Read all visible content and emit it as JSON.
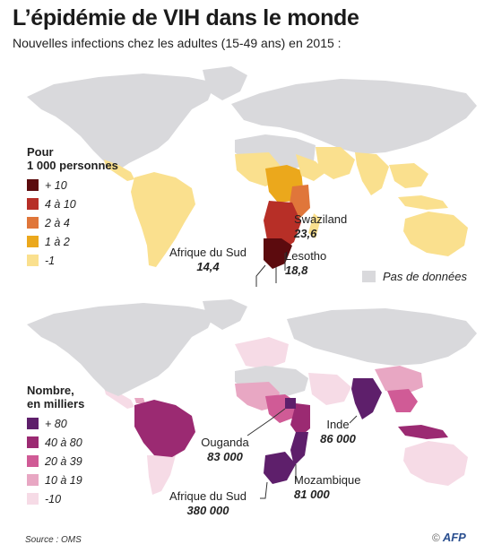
{
  "title": "L’épidémie de VIH dans le monde",
  "subtitle": "Nouvelles infections chez les adultes (15-49 ans) en 2015 :",
  "map1": {
    "legend_title_line1": "Pour",
    "legend_title_line2": "1 000 personnes",
    "legend": [
      {
        "label": "+ 10",
        "color": "#5c0b0e"
      },
      {
        "label": "4 à 10",
        "color": "#b72f27"
      },
      {
        "label": "2 à 4",
        "color": "#e0763a"
      },
      {
        "label": "1 à 2",
        "color": "#eba81c"
      },
      {
        "label": "-1",
        "color": "#fae08e"
      }
    ],
    "no_data_label": "Pas de données",
    "no_data_color": "#d9d9dc",
    "callouts": {
      "swaziland": {
        "name": "Swaziland",
        "value": "23,6"
      },
      "lesotho": {
        "name": "Lesotho",
        "value": "18,8"
      },
      "south_africa": {
        "name": "Afrique du Sud",
        "value": "14,4"
      }
    }
  },
  "map2": {
    "legend_title_line1": "Nombre,",
    "legend_title_line2": "en milliers",
    "legend": [
      {
        "label": "+ 80",
        "color": "#5e1f6b"
      },
      {
        "label": "40 à 80",
        "color": "#9b2a72"
      },
      {
        "label": "20 à 39",
        "color": "#d05b96"
      },
      {
        "label": "10 à 19",
        "color": "#e8a7c3"
      },
      {
        "label": "-10",
        "color": "#f6dbe6"
      }
    ],
    "callouts": {
      "india": {
        "name": "Inde",
        "value": "86 000"
      },
      "uganda": {
        "name": "Ouganda",
        "value": "83 000"
      },
      "mozambique": {
        "name": "Mozambique",
        "value": "81 000"
      },
      "south_africa": {
        "name": "Afrique du Sud",
        "value": "380 000"
      }
    }
  },
  "source": "Source : OMS",
  "logo_text": "AFP",
  "logo_prefix": "©"
}
